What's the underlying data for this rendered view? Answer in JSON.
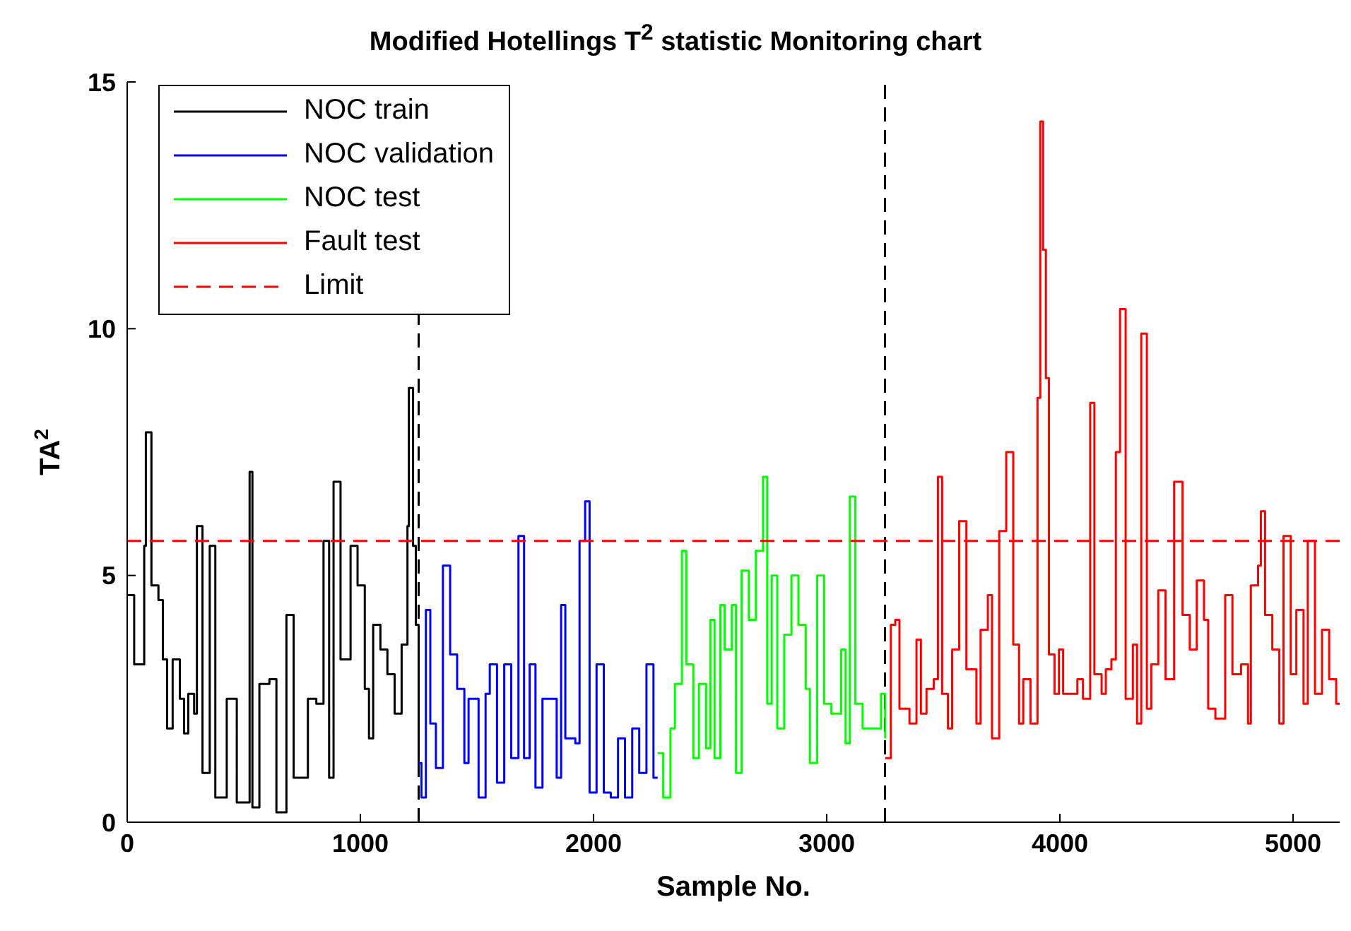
{
  "chart_data": {
    "type": "step",
    "title": "Modified Hotellings T$^{2}$ statistic Monitoring chart",
    "xlabel": "Sample No.",
    "ylabel": "TA$^{2}$",
    "xlim": [
      0,
      5200
    ],
    "xticks": [
      0,
      1000,
      2000,
      3000,
      4000,
      5000
    ],
    "ylim": [
      0,
      15
    ],
    "yticks": [
      0,
      5,
      10,
      15
    ],
    "grid": false,
    "legend": "top left",
    "marker": "none",
    "series": [
      {
        "name": "NOC train",
        "color": "#000000",
        "x": [
          0,
          30,
          73,
          80,
          104,
          134,
          153,
          171,
          195,
          226,
          244,
          262,
          287,
          299,
          323,
          354,
          378,
          427,
          470,
          525,
          537,
          567,
          610,
          640,
          683,
          714,
          775,
          811,
          842,
          866,
          885,
          915,
          958,
          988,
          1019,
          1037,
          1055,
          1086,
          1116,
          1147,
          1177,
          1202,
          1208,
          1226,
          1238,
          1250
        ],
        "values": [
          4.6,
          3.2,
          5.6,
          7.9,
          4.8,
          4.5,
          3.3,
          1.9,
          3.3,
          2.5,
          1.8,
          2.6,
          2.2,
          6.0,
          1.0,
          5.6,
          0.5,
          2.5,
          0.4,
          7.1,
          0.3,
          2.8,
          2.9,
          0.2,
          4.2,
          0.9,
          2.5,
          2.4,
          5.7,
          0.9,
          6.9,
          3.3,
          5.6,
          4.8,
          2.7,
          1.7,
          4.0,
          3.5,
          3.0,
          2.2,
          3.6,
          6.0,
          8.8,
          5.6,
          4.0,
          1.2
        ]
      },
      {
        "name": "NOC validation",
        "color": "#0000ff",
        "x": [
          1250,
          1262,
          1281,
          1300,
          1324,
          1354,
          1385,
          1415,
          1446,
          1464,
          1507,
          1537,
          1555,
          1586,
          1617,
          1647,
          1678,
          1702,
          1726,
          1751,
          1781,
          1812,
          1842,
          1861,
          1879,
          1922,
          1940,
          1964,
          1983,
          2013,
          2044,
          2074,
          2105,
          2135,
          2166,
          2196,
          2227,
          2257,
          2275
        ],
        "values": [
          1.2,
          0.5,
          4.3,
          2.0,
          1.1,
          5.2,
          3.4,
          2.7,
          1.2,
          2.5,
          0.5,
          2.6,
          3.2,
          0.8,
          3.2,
          1.3,
          5.8,
          1.3,
          3.2,
          0.7,
          2.5,
          2.5,
          0.9,
          4.4,
          1.7,
          1.6,
          5.7,
          6.5,
          0.6,
          3.2,
          0.6,
          0.5,
          1.7,
          0.5,
          1.9,
          1.0,
          3.2,
          0.9,
          0.9
        ]
      },
      {
        "name": "NOC test",
        "color": "#00ff00",
        "x": [
          2275,
          2299,
          2330,
          2349,
          2379,
          2398,
          2428,
          2452,
          2483,
          2501,
          2519,
          2544,
          2562,
          2593,
          2611,
          2635,
          2666,
          2696,
          2727,
          2745,
          2764,
          2788,
          2818,
          2849,
          2879,
          2910,
          2928,
          2959,
          2989,
          3020,
          3062,
          3081,
          3099,
          3123,
          3154,
          3190,
          3233,
          3251
        ],
        "values": [
          1.4,
          0.5,
          1.9,
          2.8,
          5.5,
          3.2,
          1.3,
          2.8,
          1.5,
          4.1,
          1.3,
          4.4,
          3.5,
          4.4,
          1.0,
          5.1,
          4.1,
          5.5,
          7.0,
          2.4,
          5.0,
          1.9,
          3.8,
          5.0,
          4.0,
          2.7,
          1.2,
          5.0,
          2.4,
          2.2,
          3.5,
          1.6,
          6.6,
          2.4,
          1.9,
          1.9,
          2.6,
          1.7
        ]
      },
      {
        "name": "Fault test",
        "color": "#ff0000",
        "x": [
          3251,
          3275,
          3294,
          3312,
          3355,
          3385,
          3404,
          3428,
          3459,
          3477,
          3495,
          3520,
          3538,
          3568,
          3599,
          3642,
          3660,
          3691,
          3709,
          3740,
          3770,
          3800,
          3825,
          3843,
          3874,
          3904,
          3916,
          3928,
          3940,
          3953,
          3977,
          3996,
          4014,
          4044,
          4075,
          4099,
          4130,
          4148,
          4179,
          4197,
          4221,
          4240,
          4258,
          4282,
          4313,
          4331,
          4349,
          4373,
          4392,
          4422,
          4453,
          4490,
          4526,
          4557,
          4587,
          4618,
          4636,
          4667,
          4709,
          4740,
          4777,
          4807,
          4819,
          4850,
          4862,
          4880,
          4911,
          4941,
          4959,
          4990,
          5014,
          5045,
          5063,
          5094,
          5124,
          5155,
          5185,
          5200
        ],
        "values": [
          1.3,
          4.0,
          4.1,
          2.3,
          2.0,
          3.7,
          2.2,
          2.7,
          2.9,
          7.0,
          2.6,
          1.9,
          3.5,
          6.1,
          3.1,
          2.0,
          3.9,
          4.6,
          1.7,
          5.9,
          7.5,
          3.6,
          2.0,
          2.9,
          2.0,
          8.6,
          14.2,
          11.6,
          9.0,
          3.4,
          2.6,
          3.5,
          2.6,
          2.6,
          2.9,
          2.5,
          8.5,
          3.0,
          2.6,
          3.1,
          3.3,
          7.5,
          10.4,
          2.5,
          3.6,
          2.0,
          9.9,
          2.3,
          3.2,
          4.7,
          2.9,
          6.9,
          4.2,
          3.5,
          4.9,
          4.1,
          2.3,
          2.1,
          4.6,
          3.0,
          3.2,
          2.0,
          4.8,
          5.2,
          6.3,
          4.2,
          3.5,
          2.0,
          5.8,
          3.0,
          4.3,
          2.4,
          5.7,
          2.6,
          3.9,
          2.9,
          2.4,
          2.4
        ]
      },
      {
        "name": "Limit",
        "type": "line",
        "color": "#ff0000",
        "line_style": "dashed",
        "x": [
          0,
          5200
        ],
        "values": [
          5.7,
          5.7
        ]
      }
    ],
    "ref_lines": [
      {
        "axis": "x",
        "value": 1250,
        "label": null,
        "color": "#000000",
        "line_style": "dashed"
      },
      {
        "axis": "x",
        "value": 3250,
        "label": null,
        "color": "#000000",
        "line_style": "dashed"
      }
    ]
  }
}
